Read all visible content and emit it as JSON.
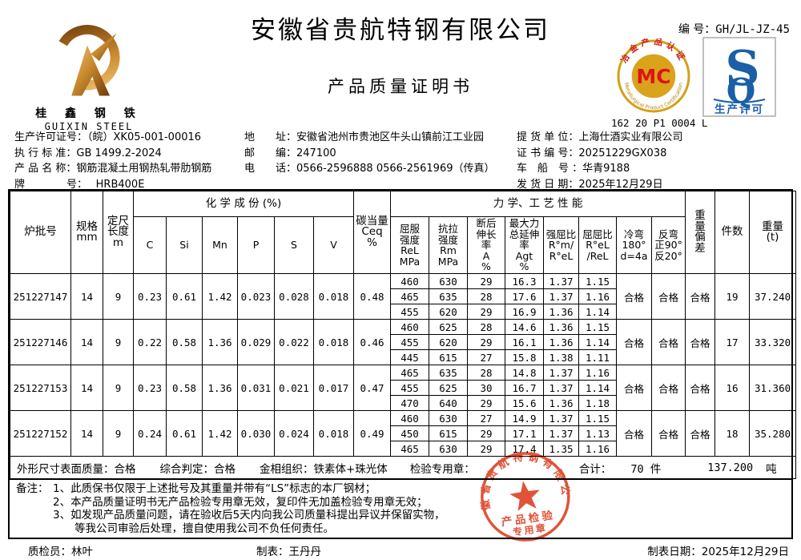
{
  "colors": {
    "stamp_red": "#dd4527",
    "mc_red": "#dd1414",
    "mc_gold": "#d4a017",
    "sq_blue": "#1a5fa8",
    "logo_gold": "#c98a2e"
  },
  "header": {
    "company": "安徽省贵航特钢有限公司",
    "doc_title": "产品质量证明书",
    "doc_no_label": "编 号：",
    "doc_no": "GH/JL-JZ-45",
    "left_logo": {
      "cn": "桂 鑫 钢 铁",
      "en": "GUIXIN STEEL"
    },
    "mc_logo": {
      "letters": "MC",
      "arc_top": "冶金产品认证",
      "arc_bottom": "Metallurgical Product Certification",
      "cert_no": "162 20 P1 0004 L"
    },
    "sq_logo": {
      "s": "S",
      "q": "Q",
      "label": "生产许可"
    }
  },
  "info": {
    "col1": [
      {
        "label": "生产许可证号：",
        "value": "（皖）XK05-001-00016"
      },
      {
        "label": "执 行 标 准：",
        "value": "GB 1499.2-2024"
      },
      {
        "label": "产 品 名 称：",
        "value": "钢筋混凝土用钢热轧带肋钢筋"
      },
      {
        "label": "牌　　　　号：",
        "value": "　 HRB400E"
      }
    ],
    "col2": [
      {
        "label": "地　　址：",
        "value": "安徽省池州市贵池区牛头山镇前江工业园"
      },
      {
        "label": "邮　　编：",
        "value": "247100"
      },
      {
        "label": "电　　话：",
        "value": "0566-2596888  0566-2561969（传真）"
      }
    ],
    "col3": [
      {
        "label": "提 货 单 位：",
        "value": "上海仕酒实业有限公司"
      },
      {
        "label": "证 书 编 号：",
        "value": "20251229GX038"
      },
      {
        "label": "车　船　号 ：",
        "value": "华青9188"
      },
      {
        "label": "发 货 日 期：",
        "value": "2025年12月29日"
      }
    ]
  },
  "table": {
    "headers": {
      "batch": "炉批号",
      "spec": "规格\nmm",
      "length": "定尺\n长度\nm",
      "chem_group": "化 学 成 份 (%)",
      "chem": [
        "C",
        "Si",
        "Mn",
        "P",
        "S",
        "V"
      ],
      "ceq": "碳当量\nCeq\n%",
      "mech_group": "力 学、工 艺 性 能",
      "mech": [
        "屈服\n强度\nReL\nMPa",
        "抗拉\n强度\nRm\nMPa",
        "断后\n伸长\n率\nA\n%",
        "最大力\n总延伸\n率\nAgt\n%",
        "强屈比\nR°m/\nR°eL",
        "屈屈比\nR°eL\n/ReL",
        "冷弯\n180°\nd=4a",
        "反弯\n正90°\n反20°"
      ],
      "weight_dev": "重\n量\n偏\n差",
      "pieces": "件数",
      "weight": "重量\n(t)"
    },
    "groups": [
      {
        "batch": "251227147",
        "spec": "14",
        "length": "9",
        "chem": [
          "0.23",
          "0.61",
          "1.42",
          "0.023",
          "0.028",
          "0.018"
        ],
        "ceq": "0.48",
        "mech": [
          [
            "460",
            "630",
            "29",
            "16.3",
            "1.37",
            "1.15"
          ],
          [
            "465",
            "635",
            "28",
            "17.6",
            "1.37",
            "1.16"
          ],
          [
            "455",
            "620",
            "29",
            "16.9",
            "1.36",
            "1.14"
          ]
        ],
        "cold_bend": "合格",
        "reverse_bend": "合格",
        "weight_dev": "合格",
        "pieces": "19",
        "weight": "37.240"
      },
      {
        "batch": "251227146",
        "spec": "14",
        "length": "9",
        "chem": [
          "0.22",
          "0.58",
          "1.36",
          "0.029",
          "0.022",
          "0.018"
        ],
        "ceq": "0.46",
        "mech": [
          [
            "460",
            "625",
            "28",
            "14.6",
            "1.36",
            "1.15"
          ],
          [
            "455",
            "620",
            "29",
            "16.1",
            "1.36",
            "1.14"
          ],
          [
            "445",
            "615",
            "27",
            "15.8",
            "1.38",
            "1.11"
          ]
        ],
        "cold_bend": "合格",
        "reverse_bend": "合格",
        "weight_dev": "合格",
        "pieces": "17",
        "weight": "33.320"
      },
      {
        "batch": "251227153",
        "spec": "14",
        "length": "9",
        "chem": [
          "0.23",
          "0.58",
          "1.36",
          "0.031",
          "0.021",
          "0.017"
        ],
        "ceq": "0.47",
        "mech": [
          [
            "465",
            "635",
            "28",
            "14.8",
            "1.37",
            "1.16"
          ],
          [
            "455",
            "625",
            "30",
            "16.7",
            "1.37",
            "1.14"
          ],
          [
            "470",
            "640",
            "29",
            "15.6",
            "1.36",
            "1.18"
          ]
        ],
        "cold_bend": "合格",
        "reverse_bend": "合格",
        "weight_dev": "合格",
        "pieces": "16",
        "weight": "31.360"
      },
      {
        "batch": "251227152",
        "spec": "14",
        "length": "9",
        "chem": [
          "0.24",
          "0.61",
          "1.42",
          "0.030",
          "0.024",
          "0.018"
        ],
        "ceq": "0.49",
        "mech": [
          [
            "460",
            "630",
            "27",
            "14.9",
            "1.37",
            "1.15"
          ],
          [
            "450",
            "615",
            "29",
            "17.1",
            "1.37",
            "1.13"
          ],
          [
            "465",
            "630",
            "29",
            "17.4",
            "1.35",
            "1.16"
          ]
        ],
        "cold_bend": "合格",
        "reverse_bend": "合格",
        "weight_dev": "合格",
        "pieces": "18",
        "weight": "35.280"
      }
    ],
    "summary": {
      "surface_label": "外形尺寸表面质量：",
      "surface": "合格",
      "judge_label": "综合判定：",
      "judge": "合格",
      "metallo_label": "金相组织：",
      "metallo": "铁素体+珠光体",
      "seal_label": "检验专用章：",
      "total_label": "合计：",
      "total_pieces": "70  件",
      "total_weight": "137.200",
      "total_unit": "吨"
    }
  },
  "notes": {
    "label": "备注：",
    "lines": [
      "1、此质保书仅限于上述批号及其重量并带有“LS”标志的本厂钢材；",
      "2、本产品质量证明书无产品检验专用章无效，复印件无加盖检验专用章无效；",
      "3、如发现产品质量问题，请在验收后5天内向我公司质量科提出异议并保留实物，",
      "　　等我公司审验后处理，擅自使用我公司不负任何责任。"
    ]
  },
  "footer": {
    "inspector_label": "质检员：",
    "inspector": "林叶",
    "tabulator_label": "制表：",
    "tabulator": "王丹丹",
    "date_label": "制表日期：",
    "date": "2025年12月29日"
  },
  "stamp": {
    "arc_text": "安徽省贵航特钢有限公司",
    "line1": "产品检验",
    "line2": "专用章"
  }
}
